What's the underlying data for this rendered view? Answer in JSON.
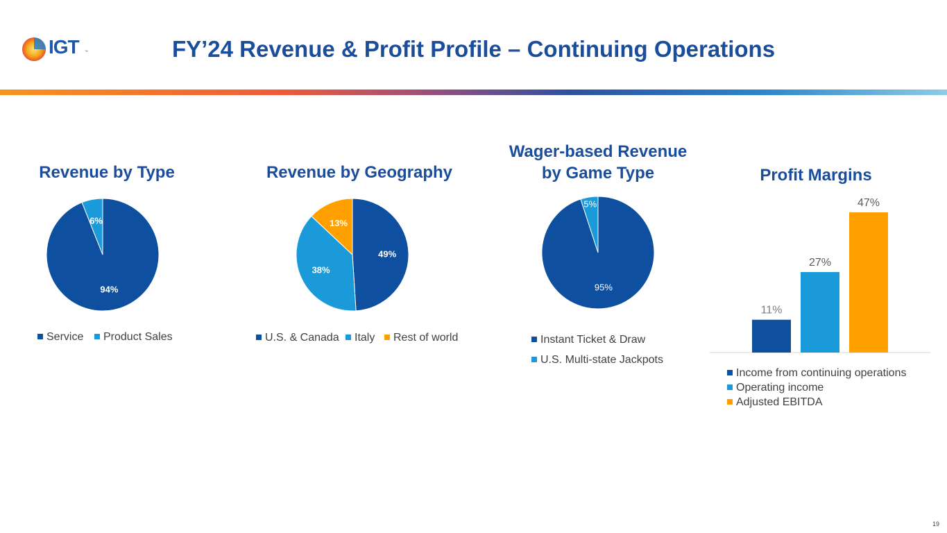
{
  "header": {
    "logo_text": "IGT",
    "logo_tm": "™",
    "title": "FY’24 Revenue & Profit Profile – Continuing Operations"
  },
  "colors": {
    "dark_blue": "#0e4fa0",
    "light_blue": "#1b9ad9",
    "orange": "#ffa000",
    "title_blue": "#1a4d9c"
  },
  "page_number": "19",
  "chart_data": [
    {
      "type": "pie",
      "title": "Revenue by Type",
      "series": [
        {
          "name": "Service",
          "value": 94,
          "label": "94%",
          "color": "#0e4fa0"
        },
        {
          "name": "Product Sales",
          "value": 6,
          "label": "6%",
          "color": "#1b9ad9"
        }
      ],
      "legend_placement": "bottom"
    },
    {
      "type": "pie",
      "title": "Revenue by Geography",
      "series": [
        {
          "name": "U.S. & Canada",
          "value": 49,
          "label": "49%",
          "color": "#0e4fa0"
        },
        {
          "name": "Italy",
          "value": 38,
          "label": "38%",
          "color": "#1b9ad9"
        },
        {
          "name": "Rest of world",
          "value": 13,
          "label": "13%",
          "color": "#ffa000"
        }
      ],
      "legend_placement": "bottom"
    },
    {
      "type": "pie",
      "title_lines": [
        "Wager-based Revenue",
        "by Game Type"
      ],
      "series": [
        {
          "name": "Instant Ticket & Draw",
          "value": 95,
          "label": "95%",
          "color": "#0e4fa0"
        },
        {
          "name": "U.S. Multi-state Jackpots",
          "value": 5,
          "label": "5%",
          "color": "#1b9ad9"
        }
      ],
      "legend_placement": "bottom"
    },
    {
      "type": "bar",
      "title": "Profit Margins",
      "categories": [
        "Income from continuing operations",
        "Operating income",
        "Adjusted EBITDA"
      ],
      "values": [
        11,
        27,
        47
      ],
      "labels": [
        "11%",
        "27%",
        "47%"
      ],
      "colors": [
        "#0e4fa0",
        "#1b9ad9",
        "#ffa000"
      ],
      "ylim": [
        0,
        47
      ],
      "grid": false,
      "legend_placement": "bottom"
    }
  ]
}
